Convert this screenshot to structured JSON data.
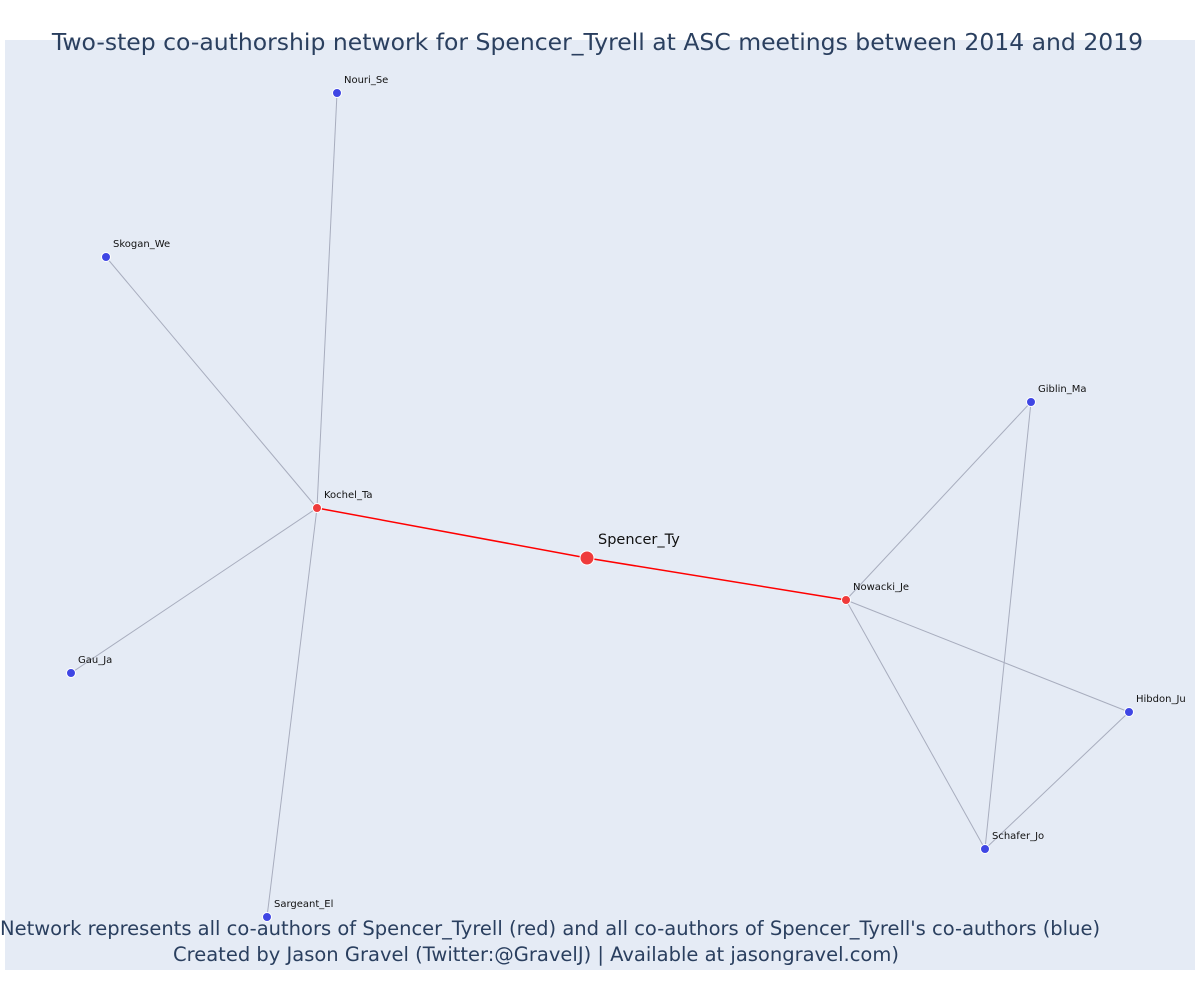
{
  "title": "Two-step co-authorship network for Spencer_Tyrell at ASC meetings between 2014 and 2019",
  "caption_line1": "Network represents all co-authors of Spencer_Tyrell (red) and all co-authors of Spencer_Tyrell's co-authors (blue)",
  "caption_line2": "Created by Jason Gravel (Twitter:@GravelJ) | Available at jasongravel.com)",
  "colors": {
    "background": "#e5ebf5",
    "focal_node": "#ef3b3b",
    "first_step_node": "#ef3b3b",
    "second_step_node": "#3f46e4",
    "focal_edge": "#ff0000",
    "other_edge": "#a8adbe",
    "text": "#2a3f5f"
  },
  "nodes": [
    {
      "id": "Spencer_Ty",
      "label": "Spencer_Ty",
      "group": "focal"
    },
    {
      "id": "Kochel_Ta",
      "label": "Kochel_Ta",
      "group": "co-author"
    },
    {
      "id": "Nowacki_Je",
      "label": "Nowacki_Je",
      "group": "co-author"
    },
    {
      "id": "Nouri_Se",
      "label": "Nouri_Se",
      "group": "second-step"
    },
    {
      "id": "Skogan_We",
      "label": "Skogan_We",
      "group": "second-step"
    },
    {
      "id": "Gau_Ja",
      "label": "Gau_Ja",
      "group": "second-step"
    },
    {
      "id": "Sargeant_El",
      "label": "Sargeant_El",
      "group": "second-step"
    },
    {
      "id": "Giblin_Ma",
      "label": "Giblin_Ma",
      "group": "second-step"
    },
    {
      "id": "Hibdon_Ju",
      "label": "Hibdon_Ju",
      "group": "second-step"
    },
    {
      "id": "Schafer_Jo",
      "label": "Schafer_Jo",
      "group": "second-step"
    }
  ],
  "edges": [
    {
      "source": "Kochel_Ta",
      "target": "Spencer_Ty",
      "kind": "focal"
    },
    {
      "source": "Spencer_Ty",
      "target": "Nowacki_Je",
      "kind": "focal"
    },
    {
      "source": "Kochel_Ta",
      "target": "Nouri_Se",
      "kind": "other"
    },
    {
      "source": "Kochel_Ta",
      "target": "Skogan_We",
      "kind": "other"
    },
    {
      "source": "Kochel_Ta",
      "target": "Gau_Ja",
      "kind": "other"
    },
    {
      "source": "Kochel_Ta",
      "target": "Sargeant_El",
      "kind": "other"
    },
    {
      "source": "Nowacki_Je",
      "target": "Giblin_Ma",
      "kind": "other"
    },
    {
      "source": "Nowacki_Je",
      "target": "Hibdon_Ju",
      "kind": "other"
    },
    {
      "source": "Nowacki_Je",
      "target": "Schafer_Jo",
      "kind": "other"
    },
    {
      "source": "Giblin_Ma",
      "target": "Schafer_Jo",
      "kind": "other"
    },
    {
      "source": "Hibdon_Ju",
      "target": "Schafer_Jo",
      "kind": "other"
    }
  ]
}
